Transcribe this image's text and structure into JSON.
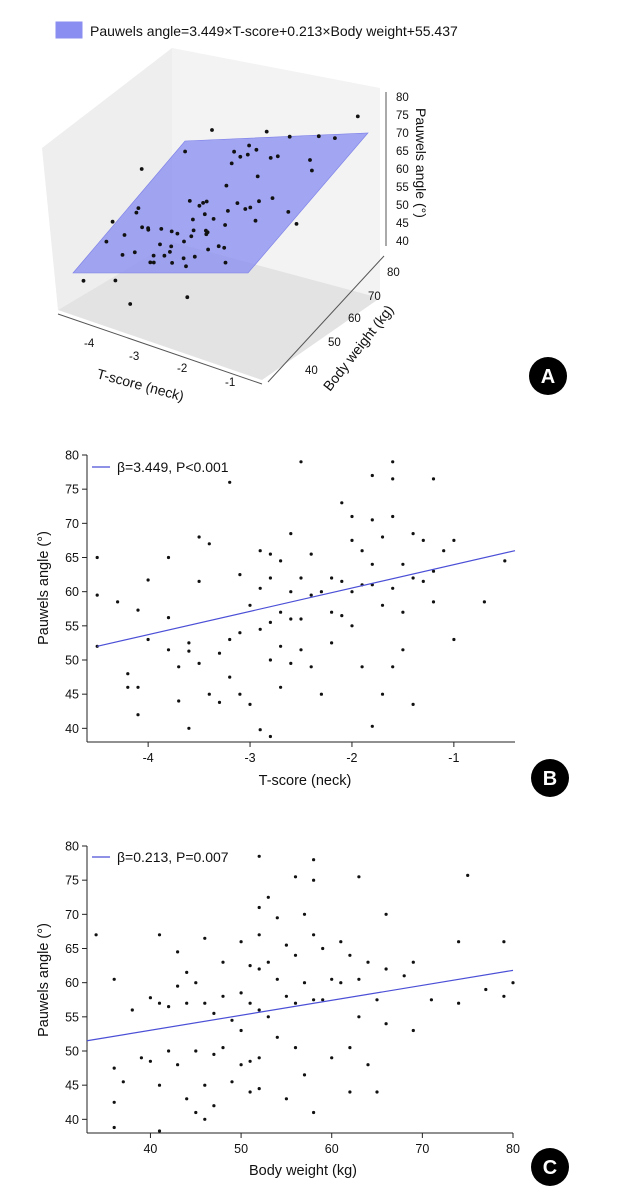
{
  "colors": {
    "plane": "#8a8ef0",
    "fit_line": "#4b4fd6",
    "points": "#111111",
    "badge": "#000000"
  },
  "panels": {
    "a": "A",
    "b": "B",
    "c": "C"
  },
  "chart_data": [
    {
      "panel": "A",
      "type": "scatter",
      "title": "",
      "legend": "Pauwels angle=3.449×T-score+0.213×Body weight+55.437",
      "xlabel": "T-score (neck)",
      "ylabel": "Body weight (kg)",
      "zlabel": "Pauwels angle (°)",
      "x_ticks": [
        "-4",
        "-3",
        "-2",
        "-1"
      ],
      "y_ticks": [
        "40",
        "50",
        "60",
        "70",
        "80"
      ],
      "z_ticks": [
        "40",
        "45",
        "50",
        "55",
        "60",
        "65",
        "70",
        "75",
        "80"
      ],
      "xlim": [
        -4.6,
        -0.4
      ],
      "ylim": [
        33,
        80
      ],
      "zlim": [
        38,
        80
      ],
      "regression_plane": {
        "intercept": 55.437,
        "coef_tscore": 3.449,
        "coef_weight": 0.213
      },
      "points": [
        [
          -4.5,
          36,
          52.0
        ],
        [
          -4.5,
          48,
          59.4
        ],
        [
          -4.5,
          60,
          65.0
        ],
        [
          -4.3,
          42,
          58.4
        ],
        [
          -4.2,
          44,
          46.0
        ],
        [
          -4.2,
          52,
          47.8
        ],
        [
          -4.1,
          46,
          57.2
        ],
        [
          -4.1,
          58,
          42.3
        ],
        [
          -4.0,
          50,
          61.7
        ],
        [
          -4.0,
          54,
          53.0
        ],
        [
          -3.9,
          62,
          46.0
        ],
        [
          -3.8,
          40,
          56.2
        ],
        [
          -3.8,
          56,
          51.3
        ],
        [
          -3.7,
          44,
          65.0
        ],
        [
          -3.7,
          66,
          51.5
        ],
        [
          -3.6,
          48,
          48.0
        ],
        [
          -3.6,
          52,
          50.0
        ],
        [
          -3.5,
          38,
          44.0
        ],
        [
          -3.5,
          60,
          40.0
        ],
        [
          -3.4,
          46,
          49.5
        ],
        [
          -3.4,
          70,
          68.3
        ],
        [
          -3.3,
          42,
          61.7
        ],
        [
          -3.3,
          54,
          51.5
        ],
        [
          -3.2,
          58,
          47.7
        ],
        [
          -3.2,
          64,
          44.7
        ],
        [
          -3.1,
          36,
          67.0
        ],
        [
          -3.1,
          48,
          52.5
        ],
        [
          -3.0,
          52,
          76.0
        ],
        [
          -3.0,
          56,
          43.5
        ],
        [
          -2.9,
          44,
          54.0
        ],
        [
          -2.9,
          62,
          49.5
        ],
        [
          -2.8,
          40,
          56.0
        ],
        [
          -2.8,
          58,
          44.0
        ],
        [
          -2.7,
          66,
          62.0
        ],
        [
          -2.7,
          50,
          58.5
        ],
        [
          -2.6,
          54,
          60.5
        ],
        [
          -2.6,
          46,
          39.8
        ],
        [
          -2.5,
          60,
          38.8
        ],
        [
          -2.5,
          38,
          55.5
        ],
        [
          -2.4,
          42,
          51.5
        ],
        [
          -2.4,
          68,
          65.5
        ],
        [
          -2.3,
          48,
          61.5
        ],
        [
          -2.3,
          56,
          46.0
        ],
        [
          -2.2,
          52,
          49.5
        ],
        [
          -2.2,
          64,
          66.0
        ],
        [
          -2.1,
          36,
          63.0
        ],
        [
          -2.1,
          58,
          57.0
        ],
        [
          -2.0,
          44,
          59.5
        ],
        [
          -2.0,
          70,
          60.5
        ],
        [
          -1.9,
          50,
          68.0
        ],
        [
          -1.9,
          62,
          49.0
        ],
        [
          -1.8,
          40,
          62.0
        ],
        [
          -1.8,
          54,
          73.0
        ],
        [
          -1.7,
          60,
          56.0
        ],
        [
          -1.7,
          46,
          60.0
        ],
        [
          -1.6,
          66,
          64.0
        ],
        [
          -1.6,
          48,
          79.0
        ],
        [
          -1.5,
          56,
          66.0
        ],
        [
          -1.5,
          72,
          40.5
        ],
        [
          -1.4,
          42,
          67.0
        ],
        [
          -1.4,
          58,
          77.0
        ],
        [
          -1.3,
          52,
          76.5
        ],
        [
          -1.2,
          64,
          71.0
        ],
        [
          -1.2,
          76,
          62.0
        ],
        [
          -1.1,
          44,
          66.0
        ],
        [
          -1.0,
          60,
          53.0
        ],
        [
          -0.9,
          68,
          58.5
        ],
        [
          -0.8,
          50,
          64.5
        ],
        [
          -0.7,
          74,
          63.0
        ],
        [
          -0.6,
          62,
          66.0
        ],
        [
          -0.5,
          80,
          64.5
        ],
        [
          -2.95,
          57,
          57.0
        ],
        [
          -3.15,
          62,
          54.0
        ],
        [
          -2.45,
          46,
          58.5
        ],
        [
          -1.85,
          59,
          55.0
        ]
      ]
    },
    {
      "panel": "B",
      "type": "scatter",
      "title": "",
      "legend": "β=3.449, P<0.001",
      "xlabel": "T-score (neck)",
      "ylabel": "Pauwels angle (°)",
      "xlim": [
        -4.6,
        -0.4
      ],
      "ylim": [
        38,
        80
      ],
      "x_ticks": [
        -4,
        -3,
        -2,
        -1
      ],
      "x_tick_labels": [
        "-4",
        "-3",
        "-2",
        "-1"
      ],
      "y_ticks": [
        40,
        45,
        50,
        55,
        60,
        65,
        70,
        75,
        80
      ],
      "y_tick_labels": [
        "40",
        "45",
        "50",
        "55",
        "60",
        "65",
        "70",
        "75",
        "80"
      ],
      "fit_line": {
        "x": [
          -4.5,
          -0.4
        ],
        "y": [
          52.0,
          66.0
        ]
      },
      "points": [
        [
          -4.5,
          65.0
        ],
        [
          -4.5,
          59.5
        ],
        [
          -4.5,
          52.0
        ],
        [
          -4.3,
          58.5
        ],
        [
          -4.2,
          48.0
        ],
        [
          -4.2,
          46.0
        ],
        [
          -4.1,
          57.3
        ],
        [
          -4.1,
          46.0
        ],
        [
          -4.1,
          42.0
        ],
        [
          -4.0,
          61.7
        ],
        [
          -4.0,
          53.0
        ],
        [
          -3.8,
          65.0
        ],
        [
          -3.8,
          56.2
        ],
        [
          -3.8,
          51.5
        ],
        [
          -3.7,
          49.0
        ],
        [
          -3.7,
          44.0
        ],
        [
          -3.6,
          52.5
        ],
        [
          -3.6,
          51.3
        ],
        [
          -3.6,
          40.0
        ],
        [
          -3.5,
          68.0
        ],
        [
          -3.5,
          61.5
        ],
        [
          -3.5,
          49.5
        ],
        [
          -3.4,
          67.0
        ],
        [
          -3.4,
          45.0
        ],
        [
          -3.3,
          51.0
        ],
        [
          -3.3,
          43.8
        ],
        [
          -3.2,
          76.0
        ],
        [
          -3.2,
          53.0
        ],
        [
          -3.2,
          47.5
        ],
        [
          -3.1,
          62.5
        ],
        [
          -3.1,
          54.0
        ],
        [
          -3.1,
          45.0
        ],
        [
          -3.0,
          58.0
        ],
        [
          -3.0,
          43.5
        ],
        [
          -2.9,
          66.0
        ],
        [
          -2.9,
          60.5
        ],
        [
          -2.9,
          54.5
        ],
        [
          -2.9,
          39.8
        ],
        [
          -2.8,
          65.5
        ],
        [
          -2.8,
          62.0
        ],
        [
          -2.8,
          55.5
        ],
        [
          -2.8,
          50.0
        ],
        [
          -2.8,
          38.8
        ],
        [
          -2.7,
          64.5
        ],
        [
          -2.7,
          57.0
        ],
        [
          -2.7,
          52.0
        ],
        [
          -2.7,
          46.0
        ],
        [
          -2.6,
          68.5
        ],
        [
          -2.6,
          60.0
        ],
        [
          -2.6,
          56.0
        ],
        [
          -2.6,
          49.5
        ],
        [
          -2.5,
          79.0
        ],
        [
          -2.5,
          62.0
        ],
        [
          -2.5,
          56.0
        ],
        [
          -2.5,
          51.5
        ],
        [
          -2.4,
          65.5
        ],
        [
          -2.4,
          59.5
        ],
        [
          -2.4,
          49.0
        ],
        [
          -2.3,
          60.0
        ],
        [
          -2.3,
          45.0
        ],
        [
          -2.2,
          62.0
        ],
        [
          -2.2,
          57.0
        ],
        [
          -2.2,
          52.5
        ],
        [
          -2.1,
          73.0
        ],
        [
          -2.1,
          61.5
        ],
        [
          -2.1,
          56.5
        ],
        [
          -2.0,
          71.0
        ],
        [
          -2.0,
          67.5
        ],
        [
          -2.0,
          60.0
        ],
        [
          -2.0,
          55.0
        ],
        [
          -1.9,
          66.0
        ],
        [
          -1.9,
          61.0
        ],
        [
          -1.9,
          49.0
        ],
        [
          -1.8,
          77.0
        ],
        [
          -1.8,
          70.5
        ],
        [
          -1.8,
          64.0
        ],
        [
          -1.8,
          61.0
        ],
        [
          -1.8,
          40.3
        ],
        [
          -1.7,
          68.0
        ],
        [
          -1.7,
          58.0
        ],
        [
          -1.7,
          45.0
        ],
        [
          -1.6,
          79.0
        ],
        [
          -1.6,
          76.5
        ],
        [
          -1.6,
          71.0
        ],
        [
          -1.6,
          60.5
        ],
        [
          -1.6,
          49.0
        ],
        [
          -1.5,
          64.0
        ],
        [
          -1.5,
          57.0
        ],
        [
          -1.5,
          51.5
        ],
        [
          -1.4,
          68.5
        ],
        [
          -1.4,
          62.0
        ],
        [
          -1.4,
          43.5
        ],
        [
          -1.3,
          67.5
        ],
        [
          -1.3,
          61.5
        ],
        [
          -1.2,
          76.5
        ],
        [
          -1.2,
          63.0
        ],
        [
          -1.2,
          58.5
        ],
        [
          -1.1,
          66.0
        ],
        [
          -1.0,
          67.5
        ],
        [
          -1.0,
          53.0
        ],
        [
          -0.7,
          58.5
        ],
        [
          -0.5,
          64.5
        ]
      ]
    },
    {
      "panel": "C",
      "type": "scatter",
      "title": "",
      "legend": "β=0.213, P=0.007",
      "xlabel": "Body weight (kg)",
      "ylabel": "Pauwels angle (°)",
      "xlim": [
        33,
        80
      ],
      "ylim": [
        38,
        80
      ],
      "x_ticks": [
        40,
        50,
        60,
        70,
        80
      ],
      "x_tick_labels": [
        "40",
        "50",
        "60",
        "70",
        "80"
      ],
      "y_ticks": [
        40,
        45,
        50,
        55,
        60,
        65,
        70,
        75,
        80
      ],
      "y_tick_labels": [
        "40",
        "45",
        "50",
        "55",
        "60",
        "65",
        "70",
        "75",
        "80"
      ],
      "fit_line": {
        "x": [
          33,
          80
        ],
        "y": [
          51.5,
          61.8
        ]
      },
      "points": [
        [
          34,
          67.0
        ],
        [
          36,
          60.5
        ],
        [
          36,
          47.5
        ],
        [
          36,
          42.5
        ],
        [
          36,
          38.8
        ],
        [
          37,
          45.5
        ],
        [
          38,
          56.0
        ],
        [
          39,
          49.0
        ],
        [
          40,
          57.8
        ],
        [
          40,
          48.5
        ],
        [
          41,
          67.0
        ],
        [
          41,
          57.0
        ],
        [
          41,
          45.0
        ],
        [
          41,
          38.3
        ],
        [
          42,
          56.5
        ],
        [
          42,
          50.0
        ],
        [
          43,
          64.5
        ],
        [
          43,
          59.5
        ],
        [
          43,
          48.0
        ],
        [
          44,
          61.5
        ],
        [
          44,
          57.0
        ],
        [
          44,
          43.0
        ],
        [
          45,
          60.0
        ],
        [
          45,
          50.0
        ],
        [
          45,
          41.0
        ],
        [
          46,
          66.5
        ],
        [
          46,
          57.0
        ],
        [
          46,
          45.0
        ],
        [
          46,
          40.0
        ],
        [
          47,
          55.5
        ],
        [
          47,
          49.5
        ],
        [
          47,
          42.0
        ],
        [
          48,
          63.0
        ],
        [
          48,
          58.0
        ],
        [
          48,
          50.5
        ],
        [
          49,
          54.5
        ],
        [
          49,
          45.5
        ],
        [
          50,
          66.0
        ],
        [
          50,
          58.5
        ],
        [
          50,
          53.0
        ],
        [
          50,
          48.0
        ],
        [
          51,
          62.5
        ],
        [
          51,
          57.0
        ],
        [
          51,
          48.5
        ],
        [
          51,
          44.0
        ],
        [
          52,
          78.5
        ],
        [
          52,
          71.0
        ],
        [
          52,
          67.0
        ],
        [
          52,
          62.0
        ],
        [
          52,
          56.0
        ],
        [
          52,
          49.0
        ],
        [
          52,
          44.5
        ],
        [
          53,
          72.5
        ],
        [
          53,
          63.0
        ],
        [
          53,
          55.0
        ],
        [
          54,
          69.5
        ],
        [
          54,
          60.5
        ],
        [
          54,
          52.0
        ],
        [
          55,
          65.5
        ],
        [
          55,
          58.0
        ],
        [
          55,
          43.0
        ],
        [
          56,
          75.5
        ],
        [
          56,
          64.0
        ],
        [
          56,
          57.0
        ],
        [
          56,
          50.5
        ],
        [
          57,
          70.0
        ],
        [
          57,
          60.0
        ],
        [
          57,
          46.5
        ],
        [
          58,
          78.0
        ],
        [
          58,
          75.0
        ],
        [
          58,
          67.0
        ],
        [
          58,
          57.5
        ],
        [
          58,
          41.0
        ],
        [
          59,
          65.0
        ],
        [
          59,
          57.5
        ],
        [
          60,
          60.5
        ],
        [
          60,
          49.0
        ],
        [
          61,
          66.0
        ],
        [
          61,
          60.0
        ],
        [
          62,
          64.0
        ],
        [
          62,
          50.5
        ],
        [
          62,
          44.0
        ],
        [
          63,
          75.5
        ],
        [
          63,
          60.5
        ],
        [
          63,
          55.0
        ],
        [
          64,
          63.0
        ],
        [
          64,
          48.0
        ],
        [
          65,
          57.5
        ],
        [
          65,
          44.0
        ],
        [
          66,
          70.0
        ],
        [
          66,
          62.0
        ],
        [
          66,
          54.0
        ],
        [
          68,
          61.0
        ],
        [
          69,
          63.0
        ],
        [
          69,
          53.0
        ],
        [
          71,
          57.5
        ],
        [
          74,
          66.0
        ],
        [
          74,
          57.0
        ],
        [
          75,
          75.7
        ],
        [
          77,
          59.0
        ],
        [
          79,
          66.0
        ],
        [
          79,
          58.0
        ],
        [
          80,
          60.0
        ]
      ]
    }
  ]
}
